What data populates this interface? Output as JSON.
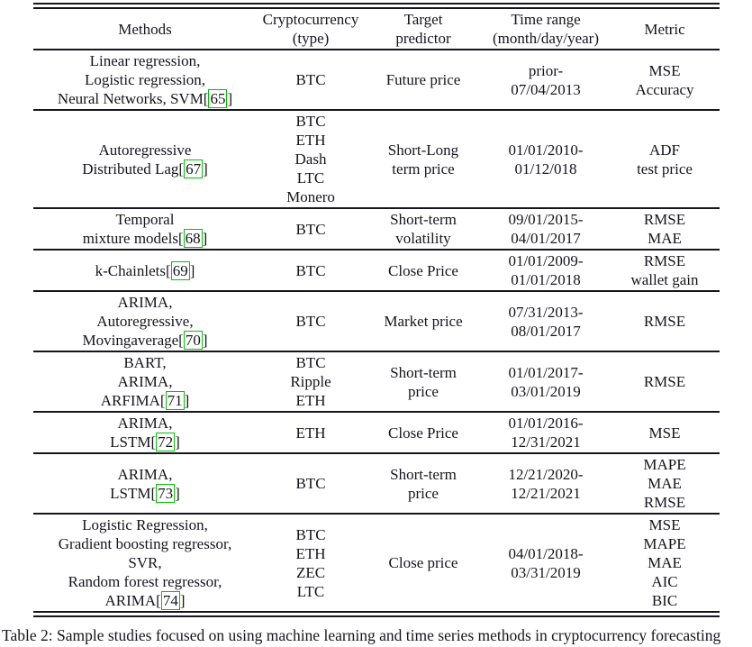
{
  "caption": "Table 2: Sample studies focused on using machine learning and time series methods in cryptocurrency forecasting",
  "colors": {
    "citation_box": "#00c300",
    "text": "#15151d"
  },
  "table": {
    "columns": [
      {
        "id": "methods",
        "label_lines": [
          "Methods"
        ]
      },
      {
        "id": "cryptocurrency",
        "label_lines": [
          "Cryptocurrency",
          "(type)"
        ]
      },
      {
        "id": "target-predictor",
        "label_lines": [
          "Target",
          "predictor"
        ]
      },
      {
        "id": "time-range",
        "label_lines": [
          "Time range",
          "(month/day/year)"
        ]
      },
      {
        "id": "metric",
        "label_lines": [
          "Metric"
        ]
      }
    ],
    "rows": [
      {
        "methods": [
          "Linear regression,",
          "Logistic regression,",
          "Neural Networks, SVM"
        ],
        "cite": "65",
        "cryptocurrency": [
          "BTC"
        ],
        "target_predictor": [
          "Future price"
        ],
        "time_range": [
          "prior-",
          "07/04/2013"
        ],
        "metric": [
          "MSE",
          "Accuracy"
        ]
      },
      {
        "methods": [
          "Autoregressive",
          "Distributed Lag"
        ],
        "cite": "67",
        "cryptocurrency": [
          "BTC",
          "ETH",
          "Dash",
          "LTC",
          "Monero"
        ],
        "target_predictor": [
          "Short-Long",
          "term price"
        ],
        "time_range": [
          "01/01/2010-",
          "01/12/018"
        ],
        "metric": [
          "ADF",
          "test price"
        ]
      },
      {
        "methods": [
          "Temporal",
          "mixture models"
        ],
        "cite": "68",
        "cryptocurrency": [
          "BTC"
        ],
        "target_predictor": [
          "Short-term",
          "volatility"
        ],
        "time_range": [
          "09/01/2015-",
          "04/01/2017"
        ],
        "metric": [
          "RMSE",
          "MAE"
        ]
      },
      {
        "methods": [
          "k-Chainlets"
        ],
        "cite": "69",
        "cryptocurrency": [
          "BTC"
        ],
        "target_predictor": [
          "Close Price"
        ],
        "time_range": [
          "01/01/2009-",
          "01/01/2018"
        ],
        "metric": [
          "RMSE",
          "wallet gain"
        ]
      },
      {
        "methods": [
          "ARIMA,",
          "Autoregressive,",
          "Movingaverage"
        ],
        "cite": "70",
        "cryptocurrency": [
          "BTC"
        ],
        "target_predictor": [
          "Market price"
        ],
        "time_range": [
          "07/31/2013-",
          "08/01/2017"
        ],
        "metric": [
          "RMSE"
        ]
      },
      {
        "methods": [
          "BART,",
          "ARIMA,",
          "ARFIMA"
        ],
        "cite": "71",
        "cryptocurrency": [
          "BTC",
          "Ripple",
          "ETH"
        ],
        "target_predictor": [
          "Short-term",
          "price"
        ],
        "time_range": [
          "01/01/2017-",
          "03/01/2019"
        ],
        "metric": [
          "RMSE"
        ]
      },
      {
        "methods": [
          "ARIMA,",
          "LSTM"
        ],
        "cite": "72",
        "cryptocurrency": [
          "ETH"
        ],
        "target_predictor": [
          "Close Price"
        ],
        "time_range": [
          "01/01/2016-",
          "12/31/2021"
        ],
        "metric": [
          "MSE"
        ]
      },
      {
        "methods": [
          "ARIMA,",
          "LSTM"
        ],
        "cite": "73",
        "cryptocurrency": [
          "BTC"
        ],
        "target_predictor": [
          "Short-term",
          "price"
        ],
        "time_range": [
          "12/21/2020-",
          "12/21/2021"
        ],
        "metric": [
          "MAPE",
          "MAE",
          "RMSE"
        ]
      },
      {
        "methods": [
          "Logistic Regression,",
          "Gradient boosting regressor,",
          "SVR,",
          "Random forest regressor,",
          "ARIMA"
        ],
        "cite": "74",
        "cryptocurrency": [
          "BTC",
          "ETH",
          "ZEC",
          "LTC"
        ],
        "target_predictor": [
          "Close price"
        ],
        "time_range": [
          "04/01/2018-",
          "03/31/2019"
        ],
        "metric": [
          "MSE",
          "MAPE",
          "MAE",
          "AIC",
          "BIC"
        ]
      }
    ]
  }
}
